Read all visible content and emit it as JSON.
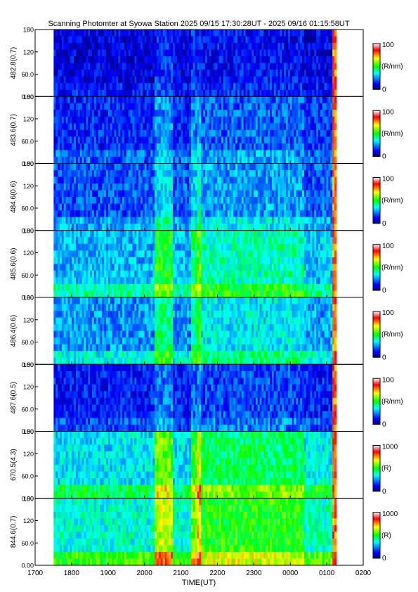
{
  "title": "Scanning Photomter at Syowa Station 2025 09/15 17:30:28UT - 2025 09/16 01:15:58UT",
  "chart_data": {
    "type": "heatmap",
    "xlabel": "TIME(UT)",
    "x_ticks": [
      "1700",
      "1800",
      "1900",
      "2000",
      "2100",
      "2200",
      "2300",
      "0000",
      "0100",
      "0200"
    ],
    "x_range_hours": [
      17,
      26
    ],
    "data_range_hours": [
      17.508,
      25.266
    ],
    "y_range": [
      0,
      180
    ],
    "y_ticks": [
      "0.00",
      "60.0",
      "120",
      "180"
    ],
    "colormap": [
      "#000080",
      "#0000ff",
      "#00ffff",
      "#00ff00",
      "#ffff00",
      "#ff0000",
      "#ffffff"
    ],
    "panels": [
      {
        "ylabel": "482.8(0.7)",
        "colorbar_max": "100",
        "colorbar_min": "0",
        "unit": "(R/nm)",
        "intensity": 0.15
      },
      {
        "ylabel": "483.6(0.7)",
        "colorbar_max": "100",
        "colorbar_min": "0",
        "unit": "(R/nm)",
        "intensity": 0.25
      },
      {
        "ylabel": "484.6(0.6)",
        "colorbar_max": "100",
        "colorbar_min": "0",
        "unit": "(R/nm)",
        "intensity": 0.32
      },
      {
        "ylabel": "485.6(0.6)",
        "colorbar_max": "100",
        "colorbar_min": "0",
        "unit": "(R/nm)",
        "intensity": 0.48
      },
      {
        "ylabel": "486.4(0.6)",
        "colorbar_max": "100",
        "colorbar_min": "0",
        "unit": "(R/nm)",
        "intensity": 0.42
      },
      {
        "ylabel": "487.6(0.5)",
        "colorbar_max": "100",
        "colorbar_min": "0",
        "unit": "(R/nm)",
        "intensity": 0.22
      },
      {
        "ylabel": "670.5(4.3)",
        "colorbar_max": "1000",
        "colorbar_min": "0",
        "unit": "(R)",
        "intensity": 0.55
      },
      {
        "ylabel": "844.6(0.7)",
        "colorbar_max": "1000",
        "colorbar_min": "0",
        "unit": "(R)",
        "intensity": 0.62
      }
    ]
  }
}
